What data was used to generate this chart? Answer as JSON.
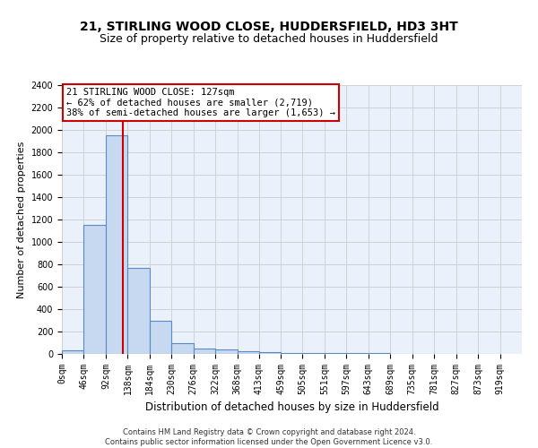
{
  "title": "21, STIRLING WOOD CLOSE, HUDDERSFIELD, HD3 3HT",
  "subtitle": "Size of property relative to detached houses in Huddersfield",
  "xlabel": "Distribution of detached houses by size in Huddersfield",
  "ylabel": "Number of detached properties",
  "footer_line1": "Contains HM Land Registry data © Crown copyright and database right 2024.",
  "footer_line2": "Contains public sector information licensed under the Open Government Licence v3.0.",
  "bin_edges": [
    0,
    46,
    92,
    138,
    184,
    230,
    276,
    322,
    368,
    413,
    459,
    505,
    551,
    597,
    643,
    689,
    735,
    781,
    827,
    873,
    919
  ],
  "bar_heights": [
    30,
    1150,
    1950,
    770,
    300,
    100,
    50,
    40,
    25,
    15,
    10,
    10,
    8,
    6,
    5,
    4,
    3,
    2,
    2,
    2
  ],
  "bar_color": "#c6d9f0",
  "bar_edgecolor": "#5a8ac6",
  "grid_color": "#d0d0d0",
  "bg_color": "#eaf1fb",
  "property_size": 127,
  "red_line_color": "#cc0000",
  "annotation_line1": "21 STIRLING WOOD CLOSE: 127sqm",
  "annotation_line2": "← 62% of detached houses are smaller (2,719)",
  "annotation_line3": "38% of semi-detached houses are larger (1,653) →",
  "annotation_box_color": "#cc0000",
  "ylim": [
    0,
    2400
  ],
  "yticks": [
    0,
    200,
    400,
    600,
    800,
    1000,
    1200,
    1400,
    1600,
    1800,
    2000,
    2200,
    2400
  ],
  "title_fontsize": 10,
  "subtitle_fontsize": 9,
  "tick_label_fontsize": 7,
  "ylabel_fontsize": 8,
  "xlabel_fontsize": 8.5,
  "annotation_fontsize": 7.5
}
